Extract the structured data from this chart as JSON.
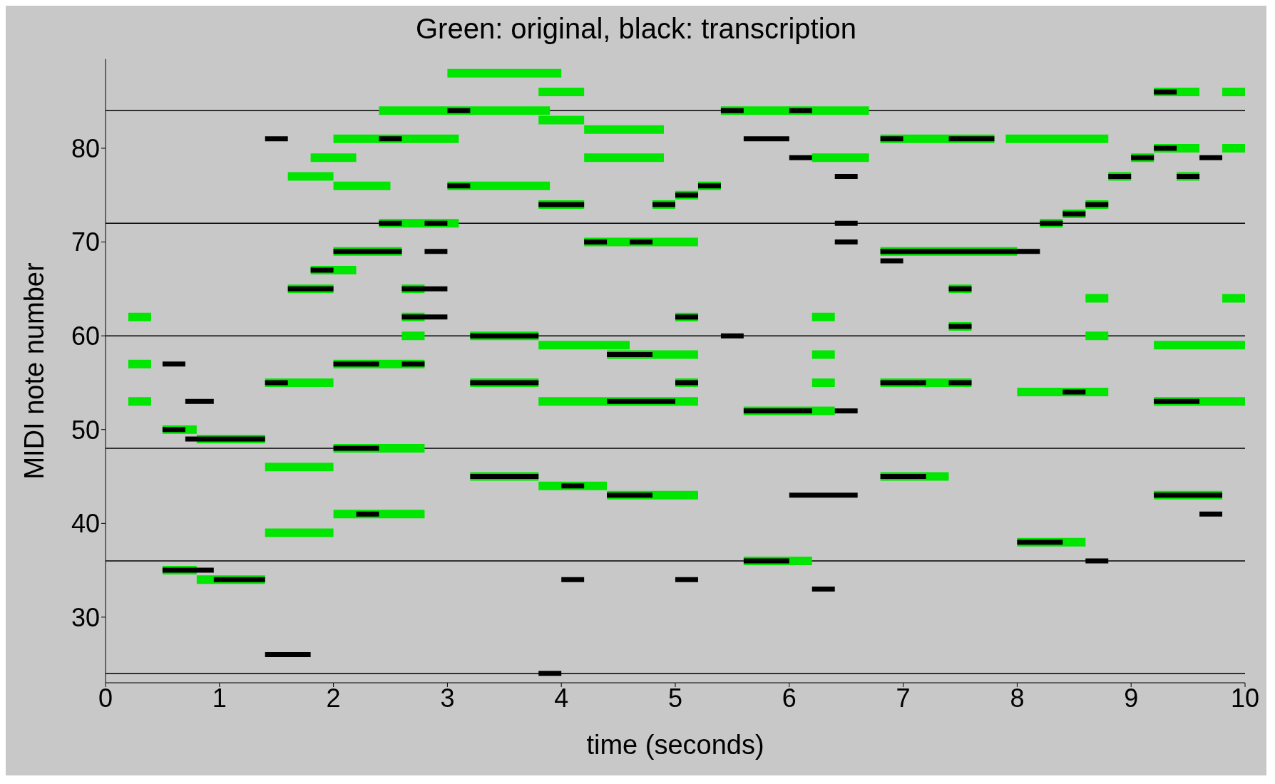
{
  "chart_data": {
    "type": "line",
    "title": "Green: original,  black: transcription",
    "xlabel": "time (seconds)",
    "ylabel": "MIDI note number",
    "xlim": [
      0,
      10
    ],
    "xticks": [
      0,
      1,
      2,
      3,
      4,
      5,
      6,
      7,
      8,
      9,
      10
    ],
    "ylim": [
      23,
      89.5
    ],
    "yticks": [
      30,
      40,
      50,
      60,
      70,
      80
    ],
    "ref_lines": [
      {
        "axis": "y",
        "value": 24,
        "color": "#000000"
      },
      {
        "axis": "y",
        "value": 36,
        "color": "#000000"
      },
      {
        "axis": "y",
        "value": 48,
        "color": "#000000"
      },
      {
        "axis": "y",
        "value": 60,
        "color": "#000000"
      },
      {
        "axis": "y",
        "value": 72,
        "color": "#000000"
      },
      {
        "axis": "y",
        "value": 84,
        "color": "#000000"
      }
    ],
    "series": [
      {
        "color": "#00e600",
        "x": [
          3.0,
          4.0
        ],
        "values": [
          88,
          88
        ]
      },
      {
        "color": "#00e600",
        "x": [
          3.8,
          4.2
        ],
        "values": [
          86,
          86
        ]
      },
      {
        "color": "#00e600",
        "x": [
          9.2,
          9.6
        ],
        "values": [
          86,
          86
        ]
      },
      {
        "color": "#00e600",
        "x": [
          9.8,
          10
        ],
        "values": [
          86,
          86
        ]
      },
      {
        "color": "#00e600",
        "x": [
          2.4,
          3.9
        ],
        "values": [
          84,
          84
        ]
      },
      {
        "color": "#00e600",
        "x": [
          5.4,
          6.7
        ],
        "values": [
          84,
          84
        ]
      },
      {
        "color": "#00e600",
        "x": [
          3.8,
          4.2
        ],
        "values": [
          83,
          83
        ]
      },
      {
        "color": "#00e600",
        "x": [
          4.2,
          4.9
        ],
        "values": [
          82,
          82
        ]
      },
      {
        "color": "#00e600",
        "x": [
          2.0,
          3.1
        ],
        "values": [
          81,
          81
        ]
      },
      {
        "color": "#00e600",
        "x": [
          6.8,
          7.8
        ],
        "values": [
          81,
          81
        ]
      },
      {
        "color": "#00e600",
        "x": [
          7.9,
          8.8
        ],
        "values": [
          81,
          81
        ]
      },
      {
        "color": "#00e600",
        "x": [
          9.2,
          9.6
        ],
        "values": [
          80,
          80
        ]
      },
      {
        "color": "#00e600",
        "x": [
          9.8,
          10
        ],
        "values": [
          80,
          80
        ]
      },
      {
        "color": "#00e600",
        "x": [
          1.8,
          2.2
        ],
        "values": [
          79,
          79
        ]
      },
      {
        "color": "#00e600",
        "x": [
          4.2,
          4.9
        ],
        "values": [
          79,
          79
        ]
      },
      {
        "color": "#00e600",
        "x": [
          6.2,
          6.7
        ],
        "values": [
          79,
          79
        ]
      },
      {
        "color": "#00e600",
        "x": [
          9.0,
          9.2
        ],
        "values": [
          79,
          79
        ]
      },
      {
        "color": "#00e600",
        "x": [
          1.6,
          2.0
        ],
        "values": [
          77,
          77
        ]
      },
      {
        "color": "#00e600",
        "x": [
          8.8,
          9.0
        ],
        "values": [
          77,
          77
        ]
      },
      {
        "color": "#00e600",
        "x": [
          9.4,
          9.6
        ],
        "values": [
          77,
          77
        ]
      },
      {
        "color": "#00e600",
        "x": [
          2.0,
          2.5
        ],
        "values": [
          76,
          76
        ]
      },
      {
        "color": "#00e600",
        "x": [
          3.0,
          3.9
        ],
        "values": [
          76,
          76
        ]
      },
      {
        "color": "#00e600",
        "x": [
          5.2,
          5.4
        ],
        "values": [
          76,
          76
        ]
      },
      {
        "color": "#00e600",
        "x": [
          5.0,
          5.2
        ],
        "values": [
          75,
          75
        ]
      },
      {
        "color": "#00e600",
        "x": [
          3.8,
          4.2
        ],
        "values": [
          74,
          74
        ]
      },
      {
        "color": "#00e600",
        "x": [
          4.8,
          5.0
        ],
        "values": [
          74,
          74
        ]
      },
      {
        "color": "#00e600",
        "x": [
          8.6,
          8.8
        ],
        "values": [
          74,
          74
        ]
      },
      {
        "color": "#00e600",
        "x": [
          8.4,
          8.6
        ],
        "values": [
          73,
          73
        ]
      },
      {
        "color": "#00e600",
        "x": [
          2.4,
          3.1
        ],
        "values": [
          72,
          72
        ]
      },
      {
        "color": "#00e600",
        "x": [
          8.2,
          8.4
        ],
        "values": [
          72,
          72
        ]
      },
      {
        "color": "#00e600",
        "x": [
          4.2,
          5.2
        ],
        "values": [
          70,
          70
        ]
      },
      {
        "color": "#00e600",
        "x": [
          2.0,
          2.6
        ],
        "values": [
          69,
          69
        ]
      },
      {
        "color": "#00e600",
        "x": [
          6.8,
          8.0
        ],
        "values": [
          69,
          69
        ]
      },
      {
        "color": "#00e600",
        "x": [
          1.8,
          2.2
        ],
        "values": [
          67,
          67
        ]
      },
      {
        "color": "#00e600",
        "x": [
          1.6,
          2.0
        ],
        "values": [
          65,
          65
        ]
      },
      {
        "color": "#00e600",
        "x": [
          2.6,
          2.8
        ],
        "values": [
          65,
          65
        ]
      },
      {
        "color": "#00e600",
        "x": [
          7.4,
          7.6
        ],
        "values": [
          65,
          65
        ]
      },
      {
        "color": "#00e600",
        "x": [
          8.6,
          8.8
        ],
        "values": [
          64,
          64
        ]
      },
      {
        "color": "#00e600",
        "x": [
          9.8,
          10
        ],
        "values": [
          64,
          64
        ]
      },
      {
        "color": "#00e600",
        "x": [
          0.2,
          0.4
        ],
        "values": [
          62,
          62
        ]
      },
      {
        "color": "#00e600",
        "x": [
          2.6,
          2.8
        ],
        "values": [
          62,
          62
        ]
      },
      {
        "color": "#00e600",
        "x": [
          5.0,
          5.2
        ],
        "values": [
          62,
          62
        ]
      },
      {
        "color": "#00e600",
        "x": [
          6.2,
          6.4
        ],
        "values": [
          62,
          62
        ]
      },
      {
        "color": "#00e600",
        "x": [
          7.4,
          7.6
        ],
        "values": [
          61,
          61
        ]
      },
      {
        "color": "#00e600",
        "x": [
          2.6,
          2.8
        ],
        "values": [
          60,
          60
        ]
      },
      {
        "color": "#00e600",
        "x": [
          3.2,
          3.8
        ],
        "values": [
          60,
          60
        ]
      },
      {
        "color": "#00e600",
        "x": [
          8.6,
          8.8
        ],
        "values": [
          60,
          60
        ]
      },
      {
        "color": "#00e600",
        "x": [
          3.8,
          4.6
        ],
        "values": [
          59,
          59
        ]
      },
      {
        "color": "#00e600",
        "x": [
          9.2,
          10
        ],
        "values": [
          59,
          59
        ]
      },
      {
        "color": "#00e600",
        "x": [
          4.4,
          5.2
        ],
        "values": [
          58,
          58
        ]
      },
      {
        "color": "#00e600",
        "x": [
          6.2,
          6.4
        ],
        "values": [
          58,
          58
        ]
      },
      {
        "color": "#00e600",
        "x": [
          0.2,
          0.4
        ],
        "values": [
          57,
          57
        ]
      },
      {
        "color": "#00e600",
        "x": [
          2.0,
          2.8
        ],
        "values": [
          57,
          57
        ]
      },
      {
        "color": "#00e600",
        "x": [
          1.4,
          2.0
        ],
        "values": [
          55,
          55
        ]
      },
      {
        "color": "#00e600",
        "x": [
          3.2,
          3.8
        ],
        "values": [
          55,
          55
        ]
      },
      {
        "color": "#00e600",
        "x": [
          5.0,
          5.2
        ],
        "values": [
          55,
          55
        ]
      },
      {
        "color": "#00e600",
        "x": [
          6.2,
          6.4
        ],
        "values": [
          55,
          55
        ]
      },
      {
        "color": "#00e600",
        "x": [
          6.8,
          7.6
        ],
        "values": [
          55,
          55
        ]
      },
      {
        "color": "#00e600",
        "x": [
          8.0,
          8.8
        ],
        "values": [
          54,
          54
        ]
      },
      {
        "color": "#00e600",
        "x": [
          0.2,
          0.4
        ],
        "values": [
          53,
          53
        ]
      },
      {
        "color": "#00e600",
        "x": [
          3.8,
          5.2
        ],
        "values": [
          53,
          53
        ]
      },
      {
        "color": "#00e600",
        "x": [
          9.2,
          10
        ],
        "values": [
          53,
          53
        ]
      },
      {
        "color": "#00e600",
        "x": [
          5.6,
          6.4
        ],
        "values": [
          52,
          52
        ]
      },
      {
        "color": "#00e600",
        "x": [
          0.5,
          0.8
        ],
        "values": [
          50,
          50
        ]
      },
      {
        "color": "#00e600",
        "x": [
          0.8,
          1.4
        ],
        "values": [
          49,
          49
        ]
      },
      {
        "color": "#00e600",
        "x": [
          2.0,
          2.8
        ],
        "values": [
          48,
          48
        ]
      },
      {
        "color": "#00e600",
        "x": [
          1.4,
          2.0
        ],
        "values": [
          46,
          46
        ]
      },
      {
        "color": "#00e600",
        "x": [
          3.2,
          3.8
        ],
        "values": [
          45,
          45
        ]
      },
      {
        "color": "#00e600",
        "x": [
          6.8,
          7.4
        ],
        "values": [
          45,
          45
        ]
      },
      {
        "color": "#00e600",
        "x": [
          3.8,
          4.4
        ],
        "values": [
          44,
          44
        ]
      },
      {
        "color": "#00e600",
        "x": [
          4.4,
          5.2
        ],
        "values": [
          43,
          43
        ]
      },
      {
        "color": "#00e600",
        "x": [
          9.2,
          9.8
        ],
        "values": [
          43,
          43
        ]
      },
      {
        "color": "#00e600",
        "x": [
          2.0,
          2.8
        ],
        "values": [
          41,
          41
        ]
      },
      {
        "color": "#00e600",
        "x": [
          1.4,
          2.0
        ],
        "values": [
          39,
          39
        ]
      },
      {
        "color": "#00e600",
        "x": [
          8.0,
          8.6
        ],
        "values": [
          38,
          38
        ]
      },
      {
        "color": "#00e600",
        "x": [
          5.6,
          6.2
        ],
        "values": [
          36,
          36
        ]
      },
      {
        "color": "#00e600",
        "x": [
          0.5,
          0.8
        ],
        "values": [
          35,
          35
        ]
      },
      {
        "color": "#00e600",
        "x": [
          0.8,
          1.4
        ],
        "values": [
          34,
          34
        ]
      },
      {
        "color": "#000000",
        "x": [
          9.2,
          9.4
        ],
        "values": [
          86,
          86
        ]
      },
      {
        "color": "#000000",
        "x": [
          3.0,
          3.2
        ],
        "values": [
          84,
          84
        ]
      },
      {
        "color": "#000000",
        "x": [
          5.4,
          5.6
        ],
        "values": [
          84,
          84
        ]
      },
      {
        "color": "#000000",
        "x": [
          6.0,
          6.2
        ],
        "values": [
          84,
          84
        ]
      },
      {
        "color": "#000000",
        "x": [
          1.4,
          1.6
        ],
        "values": [
          81,
          81
        ]
      },
      {
        "color": "#000000",
        "x": [
          2.4,
          2.6
        ],
        "values": [
          81,
          81
        ]
      },
      {
        "color": "#000000",
        "x": [
          5.6,
          6.0
        ],
        "values": [
          81,
          81
        ]
      },
      {
        "color": "#000000",
        "x": [
          6.8,
          7.0
        ],
        "values": [
          81,
          81
        ]
      },
      {
        "color": "#000000",
        "x": [
          7.4,
          7.8
        ],
        "values": [
          81,
          81
        ]
      },
      {
        "color": "#000000",
        "x": [
          9.2,
          9.4
        ],
        "values": [
          80,
          80
        ]
      },
      {
        "color": "#000000",
        "x": [
          6.0,
          6.2
        ],
        "values": [
          79,
          79
        ]
      },
      {
        "color": "#000000",
        "x": [
          9.0,
          9.2
        ],
        "values": [
          79,
          79
        ]
      },
      {
        "color": "#000000",
        "x": [
          9.6,
          9.8
        ],
        "values": [
          79,
          79
        ]
      },
      {
        "color": "#000000",
        "x": [
          6.4,
          6.6
        ],
        "values": [
          77,
          77
        ]
      },
      {
        "color": "#000000",
        "x": [
          8.8,
          9.0
        ],
        "values": [
          77,
          77
        ]
      },
      {
        "color": "#000000",
        "x": [
          9.4,
          9.6
        ],
        "values": [
          77,
          77
        ]
      },
      {
        "color": "#000000",
        "x": [
          3.0,
          3.2
        ],
        "values": [
          76,
          76
        ]
      },
      {
        "color": "#000000",
        "x": [
          5.2,
          5.4
        ],
        "values": [
          76,
          76
        ]
      },
      {
        "color": "#000000",
        "x": [
          5.0,
          5.2
        ],
        "values": [
          75,
          75
        ]
      },
      {
        "color": "#000000",
        "x": [
          3.8,
          4.2
        ],
        "values": [
          74,
          74
        ]
      },
      {
        "color": "#000000",
        "x": [
          4.8,
          5.0
        ],
        "values": [
          74,
          74
        ]
      },
      {
        "color": "#000000",
        "x": [
          8.6,
          8.8
        ],
        "values": [
          74,
          74
        ]
      },
      {
        "color": "#000000",
        "x": [
          8.4,
          8.6
        ],
        "values": [
          73,
          73
        ]
      },
      {
        "color": "#000000",
        "x": [
          2.4,
          2.6
        ],
        "values": [
          72,
          72
        ]
      },
      {
        "color": "#000000",
        "x": [
          2.8,
          3.0
        ],
        "values": [
          72,
          72
        ]
      },
      {
        "color": "#000000",
        "x": [
          6.4,
          6.6
        ],
        "values": [
          72,
          72
        ]
      },
      {
        "color": "#000000",
        "x": [
          8.2,
          8.4
        ],
        "values": [
          72,
          72
        ]
      },
      {
        "color": "#000000",
        "x": [
          4.2,
          4.4
        ],
        "values": [
          70,
          70
        ]
      },
      {
        "color": "#000000",
        "x": [
          4.6,
          4.8
        ],
        "values": [
          70,
          70
        ]
      },
      {
        "color": "#000000",
        "x": [
          6.4,
          6.6
        ],
        "values": [
          70,
          70
        ]
      },
      {
        "color": "#000000",
        "x": [
          2.0,
          2.6
        ],
        "values": [
          69,
          69
        ]
      },
      {
        "color": "#000000",
        "x": [
          2.8,
          3.0
        ],
        "values": [
          69,
          69
        ]
      },
      {
        "color": "#000000",
        "x": [
          6.8,
          8.2
        ],
        "values": [
          69,
          69
        ]
      },
      {
        "color": "#000000",
        "x": [
          6.8,
          7.0
        ],
        "values": [
          68,
          68
        ]
      },
      {
        "color": "#000000",
        "x": [
          1.8,
          2.0
        ],
        "values": [
          67,
          67
        ]
      },
      {
        "color": "#000000",
        "x": [
          1.6,
          2.0
        ],
        "values": [
          65,
          65
        ]
      },
      {
        "color": "#000000",
        "x": [
          2.6,
          3.0
        ],
        "values": [
          65,
          65
        ]
      },
      {
        "color": "#000000",
        "x": [
          7.4,
          7.6
        ],
        "values": [
          65,
          65
        ]
      },
      {
        "color": "#000000",
        "x": [
          2.6,
          3.0
        ],
        "values": [
          62,
          62
        ]
      },
      {
        "color": "#000000",
        "x": [
          5.0,
          5.2
        ],
        "values": [
          62,
          62
        ]
      },
      {
        "color": "#000000",
        "x": [
          7.4,
          7.6
        ],
        "values": [
          61,
          61
        ]
      },
      {
        "color": "#000000",
        "x": [
          3.2,
          3.8
        ],
        "values": [
          60,
          60
        ]
      },
      {
        "color": "#000000",
        "x": [
          5.4,
          5.6
        ],
        "values": [
          60,
          60
        ]
      },
      {
        "color": "#000000",
        "x": [
          4.4,
          4.8
        ],
        "values": [
          58,
          58
        ]
      },
      {
        "color": "#000000",
        "x": [
          0.5,
          0.7
        ],
        "values": [
          57,
          57
        ]
      },
      {
        "color": "#000000",
        "x": [
          2.0,
          2.4
        ],
        "values": [
          57,
          57
        ]
      },
      {
        "color": "#000000",
        "x": [
          2.6,
          2.8
        ],
        "values": [
          57,
          57
        ]
      },
      {
        "color": "#000000",
        "x": [
          1.4,
          1.6
        ],
        "values": [
          55,
          55
        ]
      },
      {
        "color": "#000000",
        "x": [
          3.2,
          3.8
        ],
        "values": [
          55,
          55
        ]
      },
      {
        "color": "#000000",
        "x": [
          5.0,
          5.2
        ],
        "values": [
          55,
          55
        ]
      },
      {
        "color": "#000000",
        "x": [
          6.8,
          7.2
        ],
        "values": [
          55,
          55
        ]
      },
      {
        "color": "#000000",
        "x": [
          7.4,
          7.6
        ],
        "values": [
          55,
          55
        ]
      },
      {
        "color": "#000000",
        "x": [
          8.4,
          8.6
        ],
        "values": [
          54,
          54
        ]
      },
      {
        "color": "#000000",
        "x": [
          0.7,
          0.95
        ],
        "values": [
          53,
          53
        ]
      },
      {
        "color": "#000000",
        "x": [
          4.4,
          5.0
        ],
        "values": [
          53,
          53
        ]
      },
      {
        "color": "#000000",
        "x": [
          9.2,
          9.6
        ],
        "values": [
          53,
          53
        ]
      },
      {
        "color": "#000000",
        "x": [
          5.6,
          6.2
        ],
        "values": [
          52,
          52
        ]
      },
      {
        "color": "#000000",
        "x": [
          6.4,
          6.6
        ],
        "values": [
          52,
          52
        ]
      },
      {
        "color": "#000000",
        "x": [
          0.5,
          0.7
        ],
        "values": [
          50,
          50
        ]
      },
      {
        "color": "#000000",
        "x": [
          0.7,
          1.4
        ],
        "values": [
          49,
          49
        ]
      },
      {
        "color": "#000000",
        "x": [
          2.0,
          2.4
        ],
        "values": [
          48,
          48
        ]
      },
      {
        "color": "#000000",
        "x": [
          3.2,
          3.8
        ],
        "values": [
          45,
          45
        ]
      },
      {
        "color": "#000000",
        "x": [
          6.8,
          7.2
        ],
        "values": [
          45,
          45
        ]
      },
      {
        "color": "#000000",
        "x": [
          4.0,
          4.2
        ],
        "values": [
          44,
          44
        ]
      },
      {
        "color": "#000000",
        "x": [
          4.4,
          4.8
        ],
        "values": [
          43,
          43
        ]
      },
      {
        "color": "#000000",
        "x": [
          6.0,
          6.6
        ],
        "values": [
          43,
          43
        ]
      },
      {
        "color": "#000000",
        "x": [
          9.2,
          9.8
        ],
        "values": [
          43,
          43
        ]
      },
      {
        "color": "#000000",
        "x": [
          2.2,
          2.4
        ],
        "values": [
          41,
          41
        ]
      },
      {
        "color": "#000000",
        "x": [
          9.6,
          9.8
        ],
        "values": [
          41,
          41
        ]
      },
      {
        "color": "#000000",
        "x": [
          8.0,
          8.4
        ],
        "values": [
          38,
          38
        ]
      },
      {
        "color": "#000000",
        "x": [
          5.6,
          6.0
        ],
        "values": [
          36,
          36
        ]
      },
      {
        "color": "#000000",
        "x": [
          8.6,
          8.8
        ],
        "values": [
          36,
          36
        ]
      },
      {
        "color": "#000000",
        "x": [
          0.5,
          0.95
        ],
        "values": [
          35,
          35
        ]
      },
      {
        "color": "#000000",
        "x": [
          0.95,
          1.4
        ],
        "values": [
          34,
          34
        ]
      },
      {
        "color": "#000000",
        "x": [
          4.0,
          4.2
        ],
        "values": [
          34,
          34
        ]
      },
      {
        "color": "#000000",
        "x": [
          5.0,
          5.2
        ],
        "values": [
          34,
          34
        ]
      },
      {
        "color": "#000000",
        "x": [
          6.2,
          6.4
        ],
        "values": [
          33,
          33
        ]
      },
      {
        "color": "#000000",
        "x": [
          1.4,
          1.8
        ],
        "values": [
          26,
          26
        ]
      },
      {
        "color": "#000000",
        "x": [
          3.8,
          4.0
        ],
        "values": [
          24,
          24
        ]
      }
    ]
  }
}
